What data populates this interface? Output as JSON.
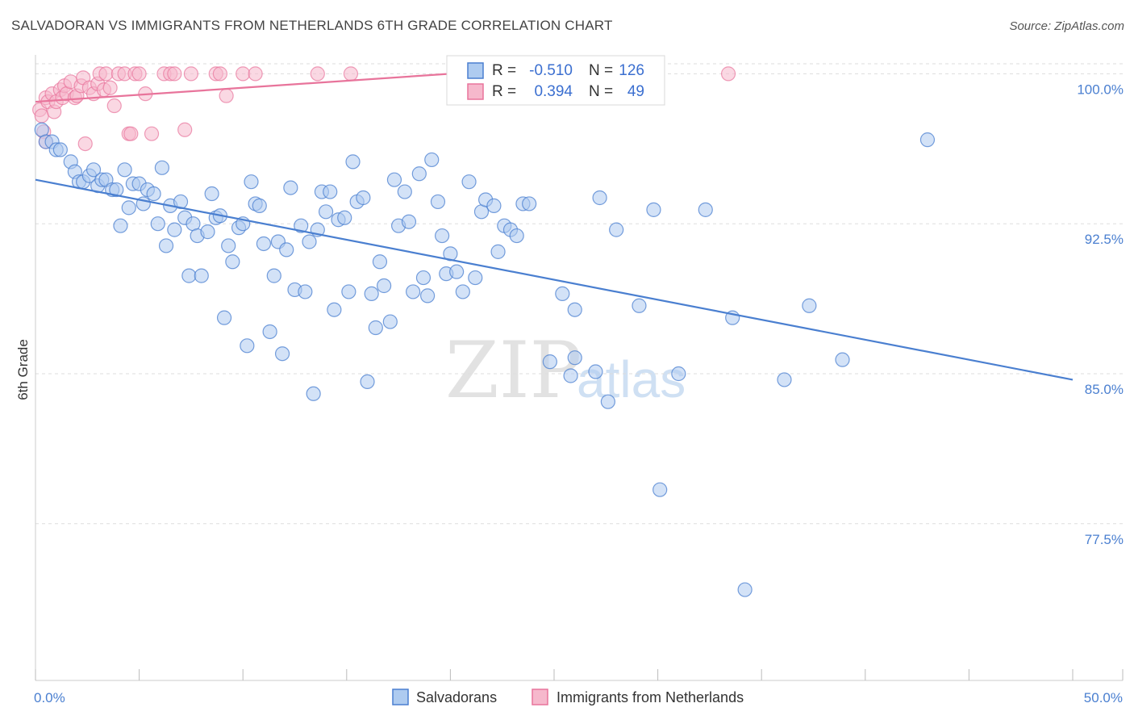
{
  "title": "SALVADORAN VS IMMIGRANTS FROM NETHERLANDS 6TH GRADE CORRELATION CHART",
  "source": "Source: ZipAtlas.com",
  "watermark": {
    "zip": "ZIP",
    "atlas": "atlas"
  },
  "colors": {
    "blue": "#4a7fd0",
    "blue_fill": "#aecbf0",
    "pink": "#e8749b",
    "pink_fill": "#f6b8cc",
    "grid": "#dddddd"
  },
  "legend": {
    "row1": {
      "r_label": "R =",
      "r_value": "-0.510",
      "n_label": "N =",
      "n_value": "126"
    },
    "row2": {
      "r_label": "R =",
      "r_value": "0.394",
      "n_label": "N =",
      "n_value": "49"
    }
  },
  "bottom_legend": {
    "series1": "Salvadorans",
    "series2": "Immigrants from Netherlands"
  },
  "chart_data": {
    "type": "scatter",
    "title": "SALVADORAN VS IMMIGRANTS FROM NETHERLANDS 6TH GRADE CORRELATION CHART",
    "xlabel": "",
    "ylabel": "6th Grade",
    "xlim": [
      0,
      50
    ],
    "ylim": [
      71.0,
      100.5
    ],
    "x_tick_labels": [
      "0.0%",
      "50.0%"
    ],
    "y_ticks": [
      77.5,
      85.0,
      92.5,
      100.0
    ],
    "y_tick_labels": [
      "77.5%",
      "85.0%",
      "92.5%",
      "100.0%"
    ],
    "grid": true,
    "legend_position": "top-center",
    "series": [
      {
        "name": "Salvadorans",
        "color": "#4a7fd0",
        "trend": {
          "x": [
            0,
            50
          ],
          "y": [
            94.7,
            84.7
          ]
        },
        "points": [
          [
            0.3,
            97.2
          ],
          [
            0.5,
            96.6
          ],
          [
            0.8,
            96.6
          ],
          [
            1.0,
            96.2
          ],
          [
            1.2,
            96.2
          ],
          [
            1.7,
            95.6
          ],
          [
            1.9,
            95.1
          ],
          [
            2.1,
            94.6
          ],
          [
            2.3,
            94.6
          ],
          [
            2.6,
            94.9
          ],
          [
            2.8,
            95.2
          ],
          [
            3.0,
            94.4
          ],
          [
            3.2,
            94.7
          ],
          [
            3.4,
            94.7
          ],
          [
            3.7,
            94.2
          ],
          [
            3.9,
            94.2
          ],
          [
            4.1,
            92.4
          ],
          [
            4.3,
            95.2
          ],
          [
            4.5,
            93.3
          ],
          [
            4.7,
            94.5
          ],
          [
            5.0,
            94.5
          ],
          [
            5.2,
            93.5
          ],
          [
            5.4,
            94.2
          ],
          [
            5.7,
            94.0
          ],
          [
            5.9,
            92.5
          ],
          [
            6.1,
            95.3
          ],
          [
            6.3,
            91.4
          ],
          [
            6.5,
            93.4
          ],
          [
            6.7,
            92.2
          ],
          [
            7.0,
            93.6
          ],
          [
            7.2,
            92.8
          ],
          [
            7.4,
            89.9
          ],
          [
            7.6,
            92.5
          ],
          [
            7.8,
            91.9
          ],
          [
            8.0,
            89.9
          ],
          [
            8.3,
            92.1
          ],
          [
            8.5,
            94.0
          ],
          [
            8.7,
            92.8
          ],
          [
            8.9,
            92.9
          ],
          [
            9.1,
            87.8
          ],
          [
            9.3,
            91.4
          ],
          [
            9.5,
            90.6
          ],
          [
            9.8,
            92.3
          ],
          [
            10.0,
            92.5
          ],
          [
            10.2,
            86.4
          ],
          [
            10.4,
            94.6
          ],
          [
            10.6,
            93.5
          ],
          [
            10.8,
            93.4
          ],
          [
            11.0,
            91.5
          ],
          [
            11.3,
            87.1
          ],
          [
            11.5,
            89.9
          ],
          [
            11.7,
            91.6
          ],
          [
            11.9,
            86.0
          ],
          [
            12.1,
            91.2
          ],
          [
            12.3,
            94.3
          ],
          [
            12.5,
            89.2
          ],
          [
            12.8,
            92.4
          ],
          [
            13.0,
            89.1
          ],
          [
            13.2,
            91.6
          ],
          [
            13.4,
            84.0
          ],
          [
            13.6,
            92.2
          ],
          [
            13.8,
            94.1
          ],
          [
            14.0,
            93.1
          ],
          [
            14.2,
            94.1
          ],
          [
            14.4,
            88.2
          ],
          [
            14.6,
            92.7
          ],
          [
            14.9,
            92.8
          ],
          [
            15.1,
            89.1
          ],
          [
            15.3,
            95.6
          ],
          [
            15.5,
            93.6
          ],
          [
            15.8,
            93.8
          ],
          [
            16.0,
            84.6
          ],
          [
            16.2,
            89.0
          ],
          [
            16.4,
            87.3
          ],
          [
            16.6,
            90.6
          ],
          [
            16.8,
            89.4
          ],
          [
            17.1,
            87.6
          ],
          [
            17.3,
            94.7
          ],
          [
            17.5,
            92.4
          ],
          [
            17.8,
            94.1
          ],
          [
            18.0,
            92.6
          ],
          [
            18.2,
            89.1
          ],
          [
            18.5,
            95.0
          ],
          [
            18.7,
            89.8
          ],
          [
            18.9,
            88.9
          ],
          [
            19.1,
            95.7
          ],
          [
            19.4,
            93.6
          ],
          [
            19.6,
            91.9
          ],
          [
            19.8,
            90.0
          ],
          [
            20.0,
            91.0
          ],
          [
            20.3,
            90.1
          ],
          [
            20.6,
            89.1
          ],
          [
            20.9,
            94.6
          ],
          [
            21.2,
            89.8
          ],
          [
            21.5,
            93.1
          ],
          [
            21.7,
            93.7
          ],
          [
            22.1,
            93.4
          ],
          [
            22.3,
            91.1
          ],
          [
            22.6,
            92.4
          ],
          [
            22.9,
            92.2
          ],
          [
            23.2,
            91.9
          ],
          [
            23.5,
            93.5
          ],
          [
            23.8,
            93.5
          ],
          [
            24.8,
            85.6
          ],
          [
            25.4,
            89.0
          ],
          [
            25.8,
            84.9
          ],
          [
            26.0,
            85.8
          ],
          [
            26.0,
            88.2
          ],
          [
            27.0,
            85.1
          ],
          [
            27.2,
            93.8
          ],
          [
            27.6,
            83.6
          ],
          [
            28.0,
            92.2
          ],
          [
            29.1,
            88.4
          ],
          [
            29.8,
            93.2
          ],
          [
            30.1,
            79.2
          ],
          [
            31.0,
            85.0
          ],
          [
            32.3,
            93.2
          ],
          [
            33.6,
            87.8
          ],
          [
            34.2,
            74.2
          ],
          [
            36.1,
            84.7
          ],
          [
            37.3,
            88.4
          ],
          [
            38.9,
            85.7
          ],
          [
            43.0,
            96.7
          ]
        ]
      },
      {
        "name": "Immigrants from Netherlands",
        "color": "#e8749b",
        "trend": {
          "x": [
            0,
            20
          ],
          "y": [
            98.6,
            100.0
          ]
        },
        "points": [
          [
            0.2,
            98.2
          ],
          [
            0.3,
            97.9
          ],
          [
            0.4,
            97.1
          ],
          [
            0.5,
            96.6
          ],
          [
            0.5,
            98.8
          ],
          [
            0.6,
            98.6
          ],
          [
            0.8,
            99.0
          ],
          [
            0.9,
            98.1
          ],
          [
            1.0,
            98.6
          ],
          [
            1.2,
            99.2
          ],
          [
            1.3,
            98.8
          ],
          [
            1.4,
            99.4
          ],
          [
            1.5,
            99.0
          ],
          [
            1.7,
            99.6
          ],
          [
            1.9,
            98.8
          ],
          [
            2.0,
            98.9
          ],
          [
            2.2,
            99.4
          ],
          [
            2.3,
            99.8
          ],
          [
            2.4,
            96.5
          ],
          [
            2.6,
            99.3
          ],
          [
            2.8,
            99.0
          ],
          [
            3.0,
            99.5
          ],
          [
            3.1,
            100.0
          ],
          [
            3.3,
            99.2
          ],
          [
            3.4,
            100.0
          ],
          [
            3.6,
            99.3
          ],
          [
            3.8,
            98.4
          ],
          [
            4.0,
            100.0
          ],
          [
            4.3,
            100.0
          ],
          [
            4.5,
            97.0
          ],
          [
            4.6,
            97.0
          ],
          [
            4.8,
            100.0
          ],
          [
            5.0,
            100.0
          ],
          [
            5.3,
            99.0
          ],
          [
            5.6,
            97.0
          ],
          [
            6.2,
            100.0
          ],
          [
            6.5,
            100.0
          ],
          [
            6.7,
            100.0
          ],
          [
            7.2,
            97.2
          ],
          [
            7.5,
            100.0
          ],
          [
            8.7,
            100.0
          ],
          [
            8.9,
            100.0
          ],
          [
            9.2,
            98.9
          ],
          [
            10.0,
            100.0
          ],
          [
            10.6,
            100.0
          ],
          [
            13.6,
            100.0
          ],
          [
            15.2,
            100.0
          ],
          [
            24.5,
            100.0
          ],
          [
            33.4,
            100.0
          ]
        ]
      }
    ]
  }
}
